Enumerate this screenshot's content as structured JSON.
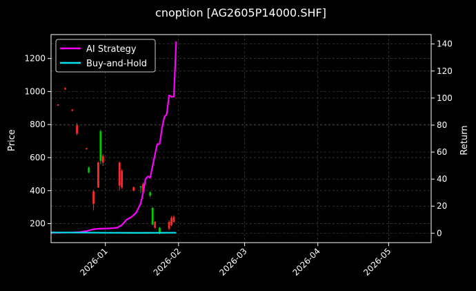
{
  "chart_data": {
    "type": "candlestick+line",
    "title": "cnoption [AG2605P14000.SHF]",
    "ylabel_left": "Price",
    "ylabel_right": "Return",
    "grid": true,
    "legend_position": "top-left",
    "xlim": [
      "2026-12-09",
      "2026-05-19"
    ],
    "ylim_left": [
      85,
      1345
    ],
    "ylim_right": [
      -7,
      147
    ],
    "x_ticks": [
      {
        "date": "2026-01-01",
        "label": "2026-01"
      },
      {
        "date": "2026-02-01",
        "label": "2026-02"
      },
      {
        "date": "2026-03-01",
        "label": "2026-03"
      },
      {
        "date": "2026-04-01",
        "label": "2026-04"
      },
      {
        "date": "2026-05-01",
        "label": "2026-05"
      }
    ],
    "y_ticks_left": [
      200,
      400,
      600,
      800,
      1000,
      1200
    ],
    "y_ticks_right": [
      0,
      20,
      40,
      60,
      80,
      100,
      120,
      140
    ],
    "colors": {
      "up": "#00cc00",
      "down": "#ff2a2a",
      "ai": "#ff00ff",
      "bh": "#00e5ee",
      "grid": "#444444"
    },
    "series": [
      {
        "name": "AI Strategy",
        "color": "#ff00ff",
        "x": [
          "2025-12-09",
          "2025-12-12",
          "2025-12-15",
          "2025-12-18",
          "2025-12-21",
          "2025-12-24",
          "2025-12-27",
          "2025-12-30",
          "2026-01-03",
          "2026-01-06",
          "2026-01-08",
          "2026-01-10",
          "2026-01-12",
          "2026-01-14",
          "2026-01-16",
          "2026-01-17",
          "2026-01-18",
          "2026-01-19",
          "2026-01-20",
          "2026-01-22",
          "2026-01-23",
          "2026-01-24",
          "2026-01-25",
          "2026-01-26",
          "2026-01-27",
          "2026-01-28",
          "2026-01-29",
          "2026-01-30",
          "2026-01-31"
        ],
        "values": [
          0.2,
          0.3,
          0.4,
          0.5,
          0.8,
          1.5,
          3,
          3.3,
          3.6,
          4,
          6,
          10,
          12,
          15,
          22,
          30,
          40,
          42,
          41,
          58,
          66,
          66,
          78,
          86,
          88,
          102,
          101,
          101,
          142
        ]
      },
      {
        "name": "Buy-and-Hold",
        "color": "#00e5ee",
        "x": [
          "2025-12-09",
          "2025-12-31",
          "2026-01-15",
          "2026-01-31"
        ],
        "values": [
          0.5,
          0.3,
          0.2,
          0.3
        ]
      }
    ],
    "candles": [
      {
        "date": "2025-12-12",
        "open": 922,
        "high": 922,
        "low": 915,
        "close": 915
      },
      {
        "date": "2025-12-15",
        "open": 1020,
        "high": 1025,
        "low": 1010,
        "close": 1013
      },
      {
        "date": "2025-12-18",
        "open": 890,
        "high": 895,
        "low": 880,
        "close": 884
      },
      {
        "date": "2025-12-20",
        "open": 795,
        "high": 810,
        "low": 735,
        "close": 745
      },
      {
        "date": "2025-12-24",
        "open": 655,
        "high": 660,
        "low": 648,
        "close": 650
      },
      {
        "date": "2025-12-25",
        "open": 510,
        "high": 545,
        "low": 505,
        "close": 540
      },
      {
        "date": "2025-12-27",
        "open": 395,
        "high": 405,
        "low": 280,
        "close": 320
      },
      {
        "date": "2025-12-29",
        "open": 570,
        "high": 575,
        "low": 415,
        "close": 420
      },
      {
        "date": "2025-12-30",
        "open": 580,
        "high": 770,
        "low": 560,
        "close": 760
      },
      {
        "date": "2025-12-31",
        "open": 610,
        "high": 620,
        "low": 550,
        "close": 570
      },
      {
        "date": "2026-01-07",
        "open": 570,
        "high": 575,
        "low": 400,
        "close": 430
      },
      {
        "date": "2026-01-08",
        "open": 520,
        "high": 530,
        "low": 410,
        "close": 420
      },
      {
        "date": "2026-01-13",
        "open": 420,
        "high": 425,
        "low": 395,
        "close": 400
      },
      {
        "date": "2026-01-16",
        "open": 420,
        "high": 430,
        "low": 385,
        "close": 425
      },
      {
        "date": "2026-01-17",
        "open": 440,
        "high": 450,
        "low": 380,
        "close": 390
      },
      {
        "date": "2026-01-20",
        "open": 370,
        "high": 395,
        "low": 360,
        "close": 390
      },
      {
        "date": "2026-01-21",
        "open": 195,
        "high": 300,
        "low": 190,
        "close": 295
      },
      {
        "date": "2026-01-22",
        "open": 210,
        "high": 215,
        "low": 170,
        "close": 175
      },
      {
        "date": "2026-01-24",
        "open": 140,
        "high": 180,
        "low": 135,
        "close": 175
      },
      {
        "date": "2026-01-28",
        "open": 210,
        "high": 220,
        "low": 160,
        "close": 170
      },
      {
        "date": "2026-01-29",
        "open": 235,
        "high": 245,
        "low": 185,
        "close": 190
      },
      {
        "date": "2026-01-30",
        "open": 240,
        "high": 250,
        "low": 205,
        "close": 210
      }
    ]
  }
}
